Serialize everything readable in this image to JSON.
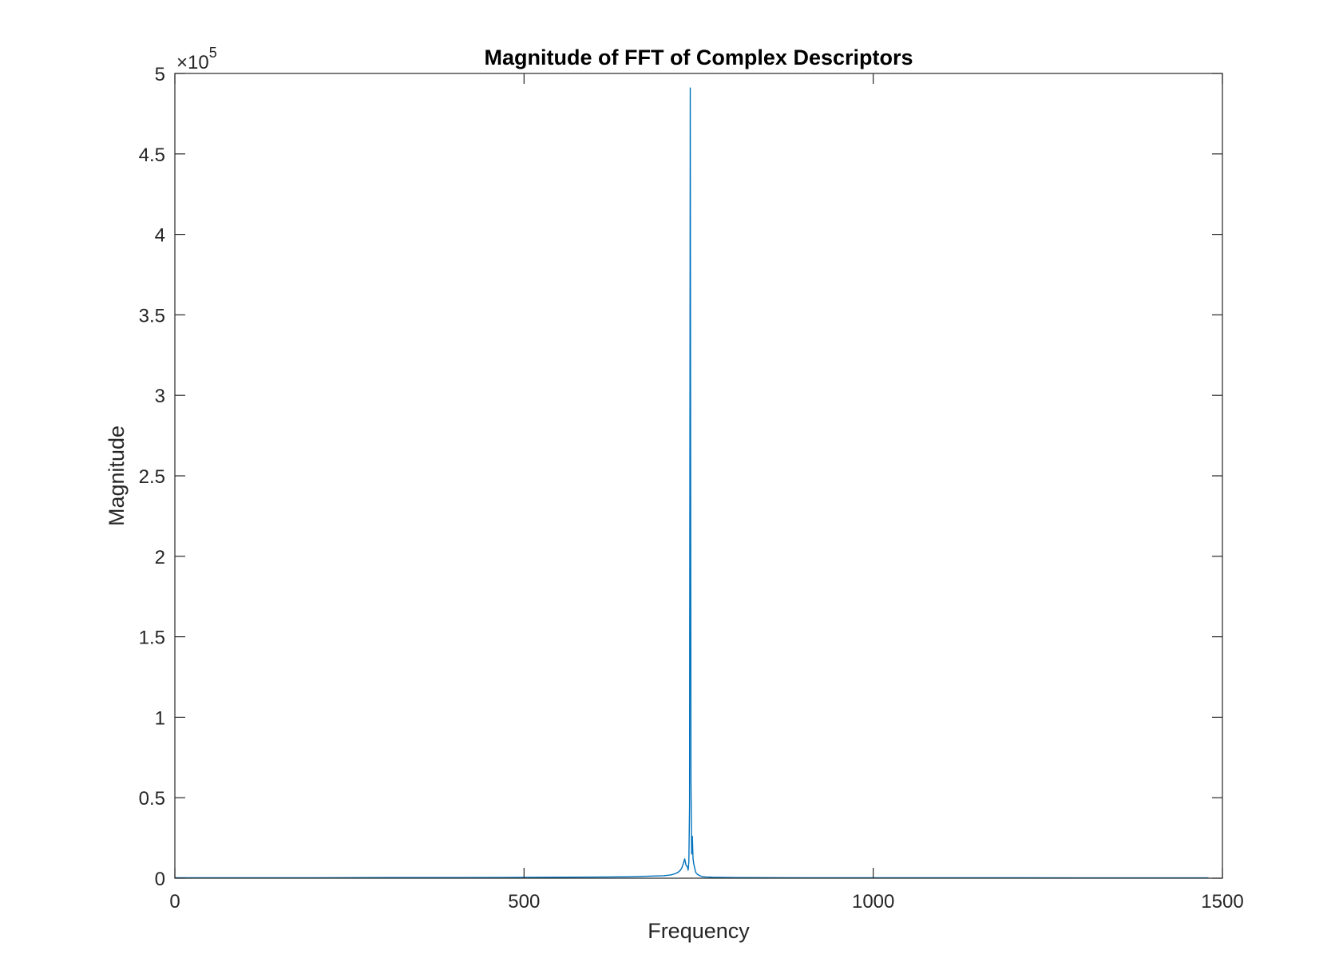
{
  "chart_data": {
    "type": "line",
    "title": "Magnitude of FFT of Complex Descriptors",
    "xlabel": "Frequency",
    "ylabel": "Magnitude",
    "xlim": [
      0,
      1500
    ],
    "ylim": [
      0,
      500000
    ],
    "x_ticks": [
      0,
      500,
      1000,
      1500
    ],
    "x_tick_labels": [
      "0",
      "500",
      "1000",
      "1500"
    ],
    "y_ticks": [
      0,
      50000,
      100000,
      150000,
      200000,
      250000,
      300000,
      350000,
      400000,
      450000,
      500000
    ],
    "y_tick_labels": [
      "0",
      "0.5",
      "1",
      "1.5",
      "2",
      "2.5",
      "3",
      "3.5",
      "4",
      "4.5",
      "5"
    ],
    "y_exponent": {
      "base": "×10",
      "power": "5"
    },
    "grid": false,
    "box": true,
    "series": [
      {
        "color": "#0072BD",
        "x": [
          0,
          100,
          200,
          300,
          400,
          500,
          600,
          650,
          700,
          710,
          715,
          720,
          724,
          726,
          728,
          730,
          732,
          734,
          735,
          736,
          737,
          738,
          739,
          740,
          741,
          742,
          743,
          744,
          745,
          746,
          748,
          750,
          752,
          755,
          760,
          765,
          770,
          780,
          800,
          900,
          1000,
          1100,
          1200,
          1300,
          1400,
          1480
        ],
        "y": [
          300,
          300,
          300,
          400,
          400,
          500,
          700,
          900,
          1500,
          2000,
          2600,
          3500,
          5000,
          6500,
          9000,
          12000,
          8000,
          7000,
          5000,
          10000,
          45000,
          491000,
          60000,
          15000,
          26000,
          12000,
          9000,
          7000,
          5000,
          3500,
          2500,
          2000,
          1500,
          1000,
          800,
          700,
          600,
          500,
          400,
          300,
          300,
          300,
          300,
          200,
          200,
          200
        ]
      }
    ]
  }
}
